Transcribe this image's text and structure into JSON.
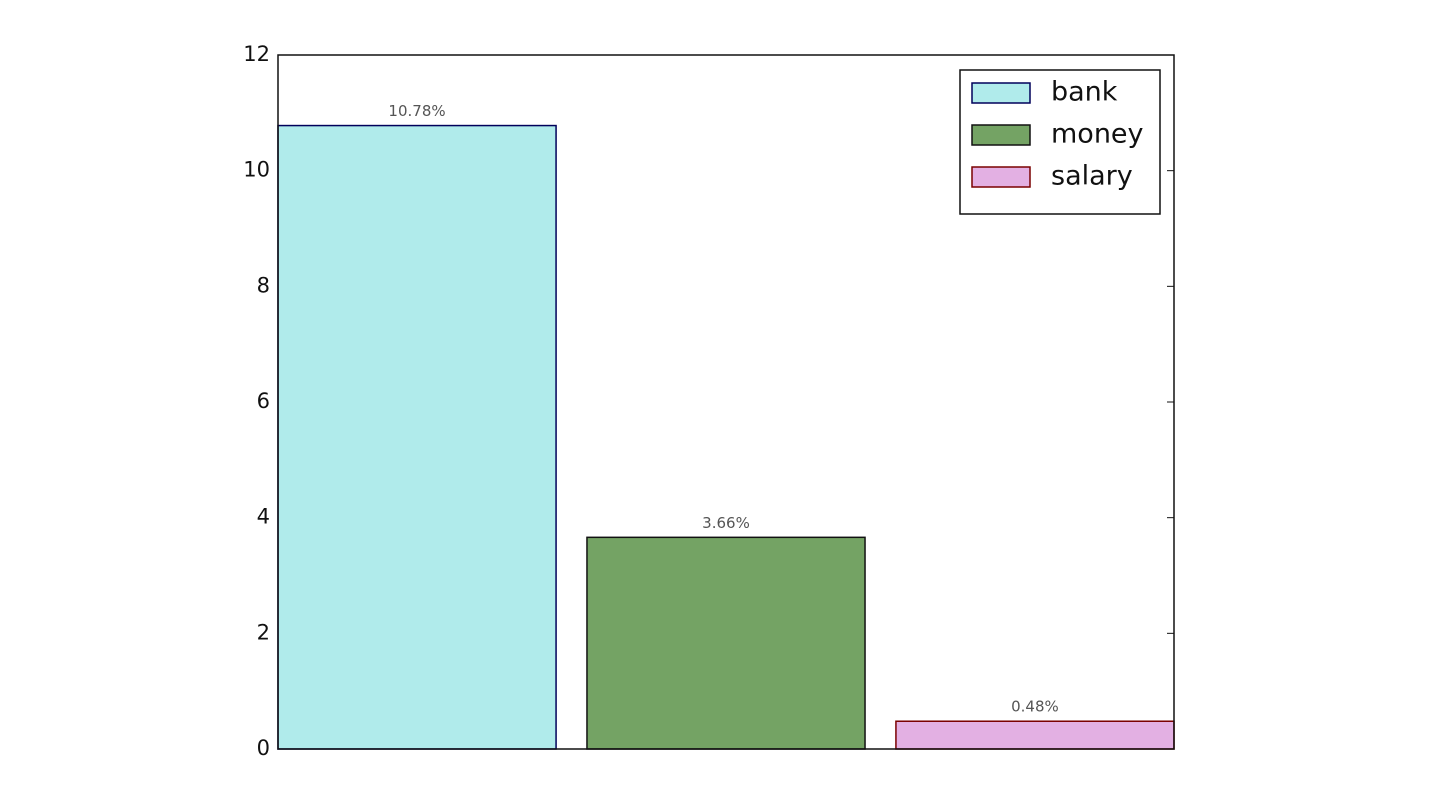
{
  "chart_data": {
    "type": "bar",
    "series": [
      {
        "name": "bank",
        "color": "#b0ebeb",
        "edgecolor": "#00005a",
        "values": [
          10.78
        ],
        "value_labels": [
          "10.78%"
        ]
      },
      {
        "name": "money",
        "color": "#74a364",
        "edgecolor": "#111111",
        "values": [
          3.66
        ],
        "value_labels": [
          "3.66%"
        ]
      },
      {
        "name": "salary",
        "color": "#e3b0e3",
        "edgecolor": "#7a0000",
        "values": [
          0.48
        ],
        "value_labels": [
          "0.48%"
        ]
      }
    ],
    "ylim": [
      0,
      12
    ],
    "yticks": [
      0,
      2,
      4,
      6,
      8,
      10,
      12
    ],
    "legend": "upper right"
  }
}
